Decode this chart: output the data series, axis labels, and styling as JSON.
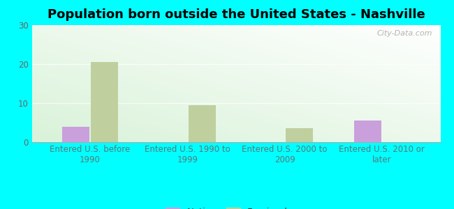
{
  "title": "Population born outside the United States - Nashville",
  "categories": [
    "Entered U.S. before\n1990",
    "Entered U.S. 1990 to\n1999",
    "Entered U.S. 2000 to\n2009",
    "Entered U.S. 2010 or\nlater"
  ],
  "native_values": [
    4.0,
    0,
    0,
    5.5
  ],
  "foreign_born_values": [
    20.5,
    9.5,
    3.5,
    0
  ],
  "native_color": "#c9a0dc",
  "foreign_born_color": "#bfcf9e",
  "background_color": "#00ffff",
  "ylim": [
    0,
    30
  ],
  "yticks": [
    0,
    10,
    20,
    30
  ],
  "bar_width": 0.28,
  "title_fontsize": 13,
  "tick_fontsize": 8.5,
  "legend_fontsize": 9.5,
  "watermark": "City-Data.com",
  "xtick_color": "#5a7a7a",
  "ytick_color": "#666666"
}
